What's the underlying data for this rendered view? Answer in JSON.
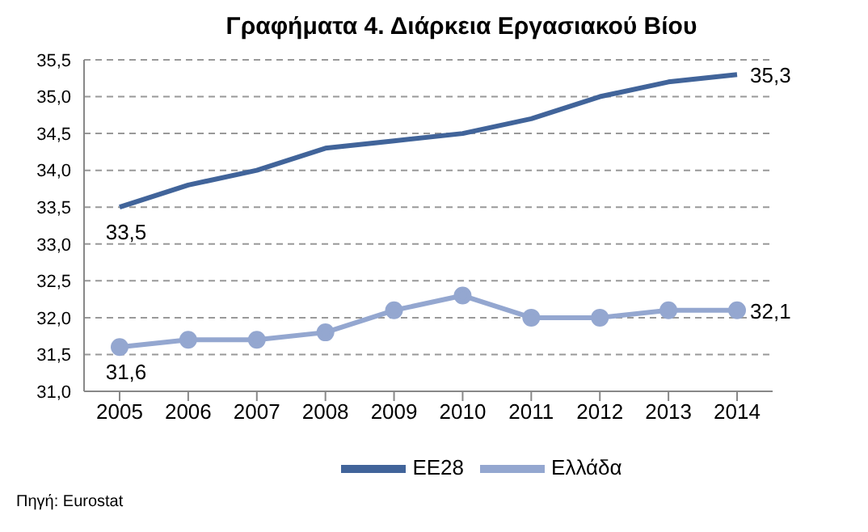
{
  "chart_data": {
    "type": "line",
    "title": "Γραφήματα 4. Διάρκεια Εργασιακού Βίου",
    "categories": [
      "2005",
      "2006",
      "2007",
      "2008",
      "2009",
      "2010",
      "2011",
      "2012",
      "2013",
      "2014"
    ],
    "series": [
      {
        "name": "ΕΕ28",
        "color": "#41649a",
        "marker": "none",
        "values": [
          33.5,
          33.8,
          34.0,
          34.3,
          34.4,
          34.5,
          34.7,
          35.0,
          35.2,
          35.3
        ],
        "value_labels": [
          "33,5",
          null,
          null,
          null,
          null,
          null,
          null,
          null,
          null,
          "35,3"
        ]
      },
      {
        "name": "Ελλάδα",
        "color": "#94a7d0",
        "marker": "circle",
        "values": [
          31.6,
          31.7,
          31.7,
          31.8,
          32.1,
          32.3,
          32.0,
          32.0,
          32.1,
          32.1
        ],
        "value_labels": [
          "31,6",
          null,
          null,
          null,
          null,
          null,
          null,
          null,
          null,
          "32,1"
        ]
      }
    ],
    "ylim": [
      31.0,
      35.5
    ],
    "yticks": [
      {
        "value": 31,
        "label": "31,0"
      },
      {
        "value": 31.5,
        "label": "31,5"
      },
      {
        "value": 32,
        "label": "32,0"
      },
      {
        "value": 32.5,
        "label": "32,5"
      },
      {
        "value": 33,
        "label": "33,0"
      },
      {
        "value": 33.5,
        "label": "33,5"
      },
      {
        "value": 34,
        "label": "34,0"
      },
      {
        "value": 34.5,
        "label": "34,5"
      },
      {
        "value": 35,
        "label": "35,0"
      },
      {
        "value": 35.5,
        "label": "35,5"
      }
    ],
    "grid": "y",
    "legend": "bottom",
    "line_style": "solid",
    "annotations": [
      "Πηγή: Eurostat"
    ]
  }
}
